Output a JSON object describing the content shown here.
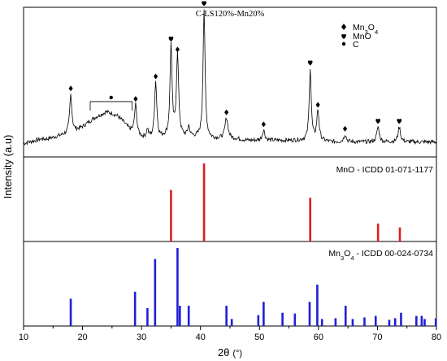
{
  "chart_data": {
    "type": "line",
    "xlabel_main": "2θ",
    "xlabel_unit": "(°)",
    "ylabel": "Intensity (a.u)",
    "xlim": [
      10,
      80
    ],
    "xticks": [
      10,
      20,
      30,
      40,
      50,
      60,
      70,
      80
    ],
    "panels": [
      {
        "type": "line",
        "title": "C-LS120%-Mn20%",
        "legend": [
          {
            "marker": "diamond",
            "label_main": "Mn",
            "sub1": "3",
            "mid": "O",
            "sub2": "4"
          },
          {
            "marker": "heart",
            "label_main": "MnO"
          },
          {
            "marker": "circle",
            "label_main": "C"
          }
        ],
        "baseline_points": [
          [
            10,
            0.09
          ],
          [
            11,
            0.1
          ],
          [
            12,
            0.11
          ],
          [
            13,
            0.12
          ],
          [
            14,
            0.12
          ],
          [
            15,
            0.13
          ],
          [
            16,
            0.14
          ],
          [
            17,
            0.15
          ],
          [
            18,
            0.16
          ],
          [
            19,
            0.18
          ],
          [
            20,
            0.2
          ],
          [
            21,
            0.23
          ],
          [
            22,
            0.26
          ],
          [
            23,
            0.28
          ],
          [
            24,
            0.3
          ],
          [
            25,
            0.29
          ],
          [
            26,
            0.27
          ],
          [
            27,
            0.23
          ],
          [
            28,
            0.18
          ],
          [
            29,
            0.15
          ],
          [
            30,
            0.13
          ],
          [
            31,
            0.12
          ],
          [
            32,
            0.12
          ],
          [
            33,
            0.12
          ],
          [
            34,
            0.13
          ],
          [
            35,
            0.13
          ],
          [
            36,
            0.13
          ],
          [
            37,
            0.13
          ],
          [
            38,
            0.13
          ],
          [
            39,
            0.13
          ],
          [
            40,
            0.13
          ],
          [
            42,
            0.12
          ],
          [
            44,
            0.12
          ],
          [
            46,
            0.12
          ],
          [
            48,
            0.11
          ],
          [
            50,
            0.11
          ],
          [
            52,
            0.11
          ],
          [
            54,
            0.11
          ],
          [
            56,
            0.11
          ],
          [
            58,
            0.11
          ],
          [
            60,
            0.11
          ],
          [
            62,
            0.1
          ],
          [
            64,
            0.1
          ],
          [
            66,
            0.1
          ],
          [
            68,
            0.1
          ],
          [
            70,
            0.1
          ],
          [
            72,
            0.1
          ],
          [
            74,
            0.1
          ],
          [
            76,
            0.1
          ],
          [
            78,
            0.1
          ],
          [
            80,
            0.1
          ]
        ],
        "peaks": [
          {
            "x": 18.0,
            "height": 0.26,
            "width": 0.45,
            "marker": "diamond"
          },
          {
            "x": 29.0,
            "height": 0.2,
            "width": 0.45,
            "marker": "diamond"
          },
          {
            "x": 31.0,
            "height": 0.06,
            "width": 0.4,
            "marker": ""
          },
          {
            "x": 32.4,
            "height": 0.38,
            "width": 0.45,
            "marker": "diamond"
          },
          {
            "x": 35.0,
            "height": 0.62,
            "width": 0.4,
            "marker": "heart"
          },
          {
            "x": 36.1,
            "height": 0.55,
            "width": 0.45,
            "marker": "diamond"
          },
          {
            "x": 38.0,
            "height": 0.07,
            "width": 0.4,
            "marker": ""
          },
          {
            "x": 40.6,
            "height": 0.86,
            "width": 0.4,
            "marker": "heart"
          },
          {
            "x": 44.4,
            "height": 0.14,
            "width": 0.6,
            "marker": "diamond"
          },
          {
            "x": 50.7,
            "height": 0.07,
            "width": 0.5,
            "marker": "diamond"
          },
          {
            "x": 58.6,
            "height": 0.48,
            "width": 0.4,
            "marker": "heart"
          },
          {
            "x": 59.9,
            "height": 0.2,
            "width": 0.45,
            "marker": "diamond"
          },
          {
            "x": 64.5,
            "height": 0.05,
            "width": 0.5,
            "marker": "diamond"
          },
          {
            "x": 70.1,
            "height": 0.1,
            "width": 0.5,
            "marker": "heart"
          },
          {
            "x": 73.7,
            "height": 0.1,
            "width": 0.5,
            "marker": "heart"
          }
        ],
        "carbon_bracket": {
          "x_start": 21.3,
          "x_end": 28.4,
          "marker": "circle"
        }
      },
      {
        "type": "stem",
        "label": "MnO - ICDD 01-071-1177",
        "color": "#e41a1c",
        "ylim": [
          0,
          100
        ],
        "stems": [
          [
            35.0,
            66
          ],
          [
            40.6,
            100
          ],
          [
            58.6,
            56
          ],
          [
            70.1,
            23
          ],
          [
            73.8,
            18
          ]
        ]
      },
      {
        "type": "stem",
        "label_main": "Mn",
        "label_sub1": "3",
        "label_mid": "O",
        "label_sub2": "4",
        "label_rest": " - ICDD 00-024-0734",
        "color": "#1f1fd6",
        "ylim": [
          0,
          100
        ],
        "stems": [
          [
            18.0,
            35
          ],
          [
            28.9,
            44
          ],
          [
            31.0,
            23
          ],
          [
            32.3,
            86
          ],
          [
            36.1,
            100
          ],
          [
            36.5,
            26
          ],
          [
            38.0,
            26
          ],
          [
            44.4,
            26
          ],
          [
            45.3,
            9
          ],
          [
            49.8,
            14
          ],
          [
            50.7,
            31
          ],
          [
            53.9,
            17
          ],
          [
            56.0,
            16
          ],
          [
            58.5,
            31
          ],
          [
            59.8,
            53
          ],
          [
            60.6,
            9
          ],
          [
            62.9,
            10
          ],
          [
            64.6,
            26
          ],
          [
            65.8,
            9
          ],
          [
            67.8,
            11
          ],
          [
            69.7,
            13
          ],
          [
            72.0,
            8
          ],
          [
            73.0,
            10
          ],
          [
            74.0,
            17
          ],
          [
            76.6,
            13
          ],
          [
            77.5,
            13
          ],
          [
            78.0,
            9
          ],
          [
            79.9,
            10
          ]
        ]
      }
    ]
  }
}
